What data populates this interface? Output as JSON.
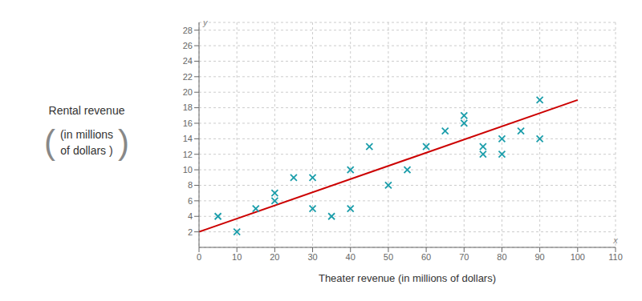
{
  "chart_data": {
    "type": "scatter",
    "xlabel": "Theater revenue (in millions of dollars)",
    "ylabel": [
      "Rental revenue",
      "(in millions",
      "of dollars )"
    ],
    "annotations": [
      "x",
      "y",
      "(",
      ")"
    ],
    "series": [
      {
        "type": "scatter",
        "color": "#1a9daa",
        "marker": "x",
        "x": [
          5,
          10,
          15,
          20,
          20,
          25,
          30,
          30,
          35,
          40,
          40,
          45,
          50,
          55,
          60,
          65,
          70,
          70,
          75,
          75,
          80,
          80,
          85,
          90,
          90
        ],
        "values": [
          4,
          2,
          5,
          7,
          6,
          9,
          5,
          9,
          4,
          5,
          10,
          13,
          8,
          10,
          13,
          15,
          16,
          17,
          13,
          12,
          12,
          14,
          15,
          14,
          19
        ]
      },
      {
        "type": "line",
        "color": "#cc0000",
        "x": [
          0,
          100
        ],
        "values": [
          2,
          19
        ]
      }
    ],
    "xlim": [
      0,
      110
    ],
    "ylim": [
      0,
      29
    ],
    "xticks": [
      0,
      10,
      20,
      30,
      40,
      50,
      60,
      70,
      80,
      90,
      100,
      110
    ],
    "yticks": [
      2,
      4,
      6,
      8,
      10,
      12,
      14,
      16,
      18,
      20,
      22,
      24,
      26,
      28
    ],
    "grid": true
  }
}
